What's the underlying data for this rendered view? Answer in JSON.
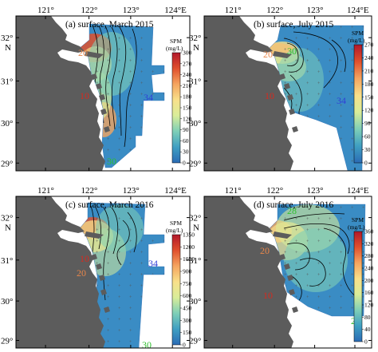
{
  "figure": {
    "top_lon_labels": [
      "121°",
      "122°",
      "123°",
      "124°E"
    ],
    "bottom_lon_labels": [
      "121°",
      "122°",
      "123°",
      "124°E"
    ],
    "lat_labels": [
      "32°",
      "31°",
      "30°",
      "29°"
    ],
    "lat_hemisphere": "N",
    "colorbar_title": "SPM",
    "colorbar_unit": "(mg/L)",
    "colors": {
      "land": "#5c5c5c",
      "sea_background": "#ffffff",
      "contour": "#000000",
      "station": "#555555",
      "label_10": "#d62a1f",
      "label_20": "#e8864a",
      "label_30": "#2fbf2f",
      "label_34": "#2f3fd6"
    },
    "colormap": [
      "#2b6bb5",
      "#3f9fc2",
      "#7fcfb7",
      "#d9ed99",
      "#f8e08a",
      "#f5a560",
      "#e0502d",
      "#b2182b"
    ]
  },
  "panels": [
    {
      "id": "a",
      "title": "(a) surface, March 2015",
      "colorbar_ticks": [
        "300",
        "270",
        "240",
        "210",
        "180",
        "150",
        "120",
        "90",
        "60",
        "30",
        "0"
      ],
      "contour_labels": [
        {
          "text": "20",
          "color": "label_20"
        },
        {
          "text": "10",
          "color": "label_10"
        },
        {
          "text": "34",
          "color": "label_34"
        },
        {
          "text": "30",
          "color": "label_30"
        }
      ]
    },
    {
      "id": "b",
      "title": "(b) surface, July 2015",
      "colorbar_ticks": [
        "270",
        "240",
        "210",
        "180",
        "150",
        "120",
        "90",
        "60",
        "30",
        "0"
      ],
      "contour_labels": [
        {
          "text": "20",
          "color": "label_20"
        },
        {
          "text": "30",
          "color": "label_30"
        },
        {
          "text": "10",
          "color": "label_10"
        },
        {
          "text": "34",
          "color": "label_34"
        }
      ]
    },
    {
      "id": "c",
      "title": "(c) surface, March 2016",
      "colorbar_ticks": [
        "1350",
        "1200",
        "1050",
        "900",
        "750",
        "600",
        "450",
        "300",
        "150",
        "0"
      ],
      "contour_labels": [
        {
          "text": "10",
          "color": "label_10"
        },
        {
          "text": "20",
          "color": "label_20"
        },
        {
          "text": "34",
          "color": "label_34"
        },
        {
          "text": "30",
          "color": "label_30"
        }
      ]
    },
    {
      "id": "d",
      "title": "(d) surface, July 2016",
      "colorbar_ticks": [
        "360",
        "320",
        "280",
        "240",
        "200",
        "160",
        "120",
        "80",
        "40",
        "0"
      ],
      "contour_labels": [
        {
          "text": "28",
          "color": "label_30"
        },
        {
          "text": "20",
          "color": "label_20"
        },
        {
          "text": "10",
          "color": "label_10"
        },
        {
          "text": "28",
          "color": "label_30"
        }
      ]
    }
  ]
}
